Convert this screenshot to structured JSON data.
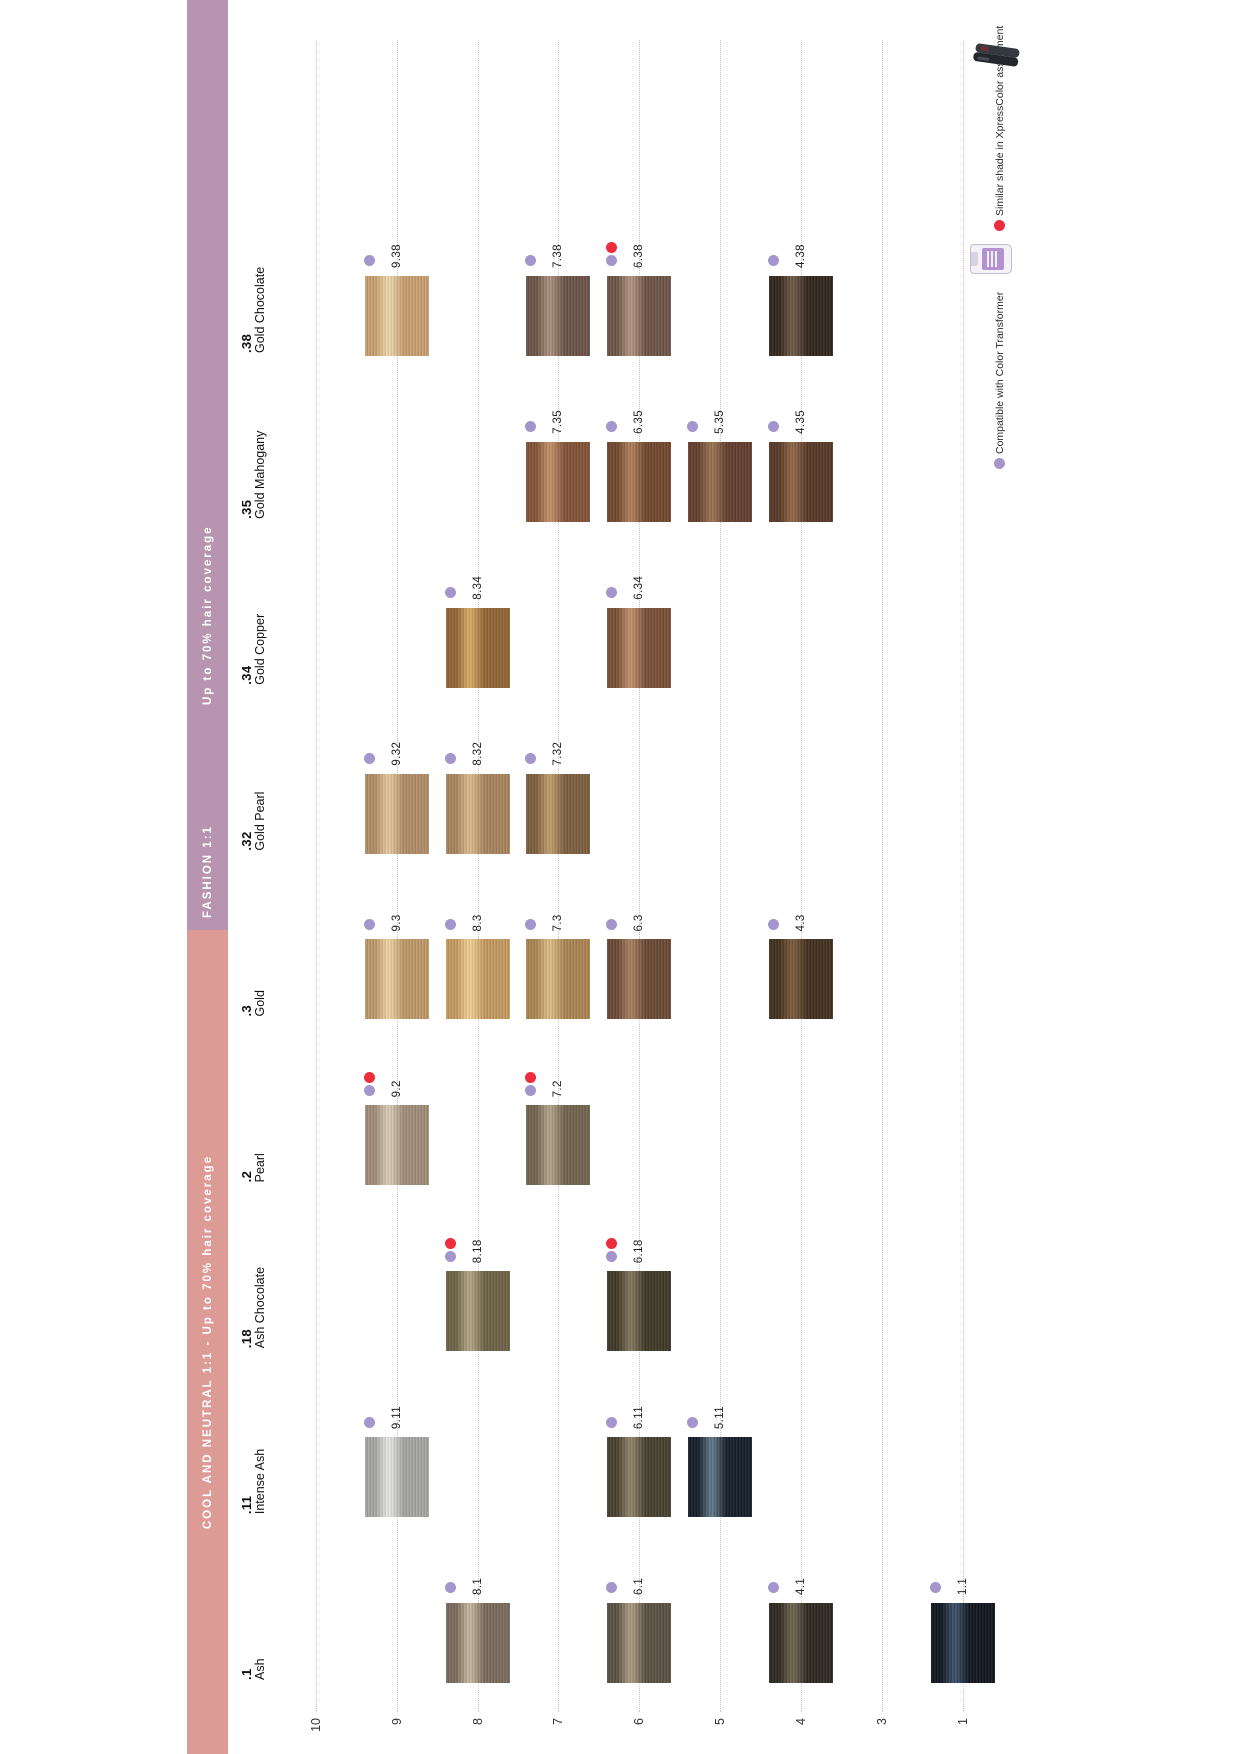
{
  "bands": {
    "cool": {
      "label": "COOL AND NEUTRAL 1:1 - Up to 70% hair coverage",
      "color": "#dd9b95"
    },
    "fashion": {
      "label": "FASHION 1:1",
      "coverage_label": "Up to 70% hair coverage",
      "color": "#b795b0"
    }
  },
  "axis": {
    "levels": [
      "10",
      "9",
      "8",
      "7",
      "6",
      "5",
      "4",
      "3",
      "1"
    ]
  },
  "legend": {
    "purple": {
      "label": "Compatible with Color Transformer",
      "color": "#a495cc"
    },
    "red": {
      "label": "Similar shade in XpressColor assortment",
      "color": "#ed2c3c"
    }
  },
  "icons": {
    "bottle": "color-transformer-bottle",
    "iron": "xpresscolor-flat-iron"
  },
  "families": [
    {
      "code": ".1",
      "name": "Ash",
      "shades": [
        {
          "code": "8.1",
          "level": "8",
          "dots": [
            "purple"
          ],
          "base": "#7b6c5c",
          "streak": "#c6b59d"
        },
        {
          "code": "6.1",
          "level": "6",
          "dots": [
            "purple"
          ],
          "base": "#5a5244",
          "streak": "#a89a7f"
        },
        {
          "code": "4.1",
          "level": "4",
          "dots": [
            "purple"
          ],
          "base": "#2e2921",
          "streak": "#6f6450"
        },
        {
          "code": "1.1",
          "level": "1",
          "dots": [
            "purple"
          ],
          "base": "#10161f",
          "streak": "#3c5068"
        }
      ]
    },
    {
      "code": ".11",
      "name": "Intense Ash",
      "shades": [
        {
          "code": "9.11",
          "level": "9",
          "dots": [
            "purple"
          ],
          "base": "#a7a7a5",
          "streak": "#e6e6e4"
        },
        {
          "code": "6.11",
          "level": "6",
          "dots": [
            "purple"
          ],
          "base": "#474130",
          "streak": "#8e8267"
        },
        {
          "code": "5.11",
          "level": "5",
          "dots": [
            "purple"
          ],
          "base": "#161f2a",
          "streak": "#5f7587"
        }
      ]
    },
    {
      "code": ".18",
      "name": "Ash Chocolate",
      "shades": [
        {
          "code": "8.18",
          "level": "8",
          "dots": [
            "red",
            "purple"
          ],
          "base": "#6f6448",
          "streak": "#b2a481"
        },
        {
          "code": "6.18",
          "level": "6",
          "dots": [
            "red",
            "purple"
          ],
          "base": "#403928",
          "streak": "#80745a"
        }
      ]
    },
    {
      "code": ".2",
      "name": "Pearl",
      "shades": [
        {
          "code": "9.2",
          "level": "9",
          "dots": [
            "red",
            "purple"
          ],
          "base": "#a28f7a",
          "streak": "#d9cbb3"
        },
        {
          "code": "7.2",
          "level": "7",
          "dots": [
            "red",
            "purple"
          ],
          "base": "#73654f",
          "streak": "#b2a288"
        }
      ]
    },
    {
      "code": ".3",
      "name": "Gold",
      "shades": [
        {
          "code": "9.3",
          "level": "9",
          "dots": [
            "purple"
          ],
          "base": "#bf996a",
          "streak": "#eed2a0"
        },
        {
          "code": "8.3",
          "level": "8",
          "dots": [
            "purple"
          ],
          "base": "#c59b62",
          "streak": "#f2cf92"
        },
        {
          "code": "7.3",
          "level": "7",
          "dots": [
            "purple"
          ],
          "base": "#ac8656",
          "streak": "#debc85"
        },
        {
          "code": "6.3",
          "level": "6",
          "dots": [
            "purple"
          ],
          "base": "#6c4a36",
          "streak": "#a87e5e"
        },
        {
          "code": "4.3",
          "level": "4",
          "dots": [
            "purple"
          ],
          "base": "#44301f",
          "streak": "#7a5b3e"
        }
      ]
    },
    {
      "code": ".32",
      "name": "Gold Pearl",
      "shades": [
        {
          "code": "9.32",
          "level": "9",
          "dots": [
            "purple"
          ],
          "base": "#b28e68",
          "streak": "#e5c79b"
        },
        {
          "code": "8.32",
          "level": "8",
          "dots": [
            "purple"
          ],
          "base": "#a9855f",
          "streak": "#dcbb8b"
        },
        {
          "code": "7.32",
          "level": "7",
          "dots": [
            "purple"
          ],
          "base": "#7e6041",
          "streak": "#c29c6c"
        }
      ]
    },
    {
      "code": ".34",
      "name": "Gold Copper",
      "shades": [
        {
          "code": "8.34",
          "level": "8",
          "dots": [
            "purple"
          ],
          "base": "#936637",
          "streak": "#d7a967"
        },
        {
          "code": "6.34",
          "level": "6",
          "dots": [
            "purple"
          ],
          "base": "#7b5138",
          "streak": "#c08f6d"
        }
      ]
    },
    {
      "code": ".35",
      "name": "Gold Mahogany",
      "shades": [
        {
          "code": "7.35",
          "level": "7",
          "dots": [
            "purple"
          ],
          "base": "#84543a",
          "streak": "#c48e67"
        },
        {
          "code": "6.35",
          "level": "6",
          "dots": [
            "purple"
          ],
          "base": "#72482e",
          "streak": "#af7e5a"
        },
        {
          "code": "5.35",
          "level": "5",
          "dots": [
            "purple"
          ],
          "base": "#64402f",
          "streak": "#9b7251"
        },
        {
          "code": "4.35",
          "level": "4",
          "dots": [
            "purple"
          ],
          "base": "#583a27",
          "streak": "#8e6648"
        }
      ]
    },
    {
      "code": ".38",
      "name": "Gold Chocolate",
      "shades": [
        {
          "code": "9.38",
          "level": "9",
          "dots": [
            "purple"
          ],
          "base": "#c9a171",
          "streak": "#efd6aa"
        },
        {
          "code": "7.38",
          "level": "7",
          "dots": [
            "purple"
          ],
          "base": "#6c5549",
          "streak": "#a98e7c"
        },
        {
          "code": "6.38",
          "level": "6",
          "dots": [
            "red",
            "purple"
          ],
          "base": "#6f5648",
          "streak": "#b19381"
        },
        {
          "code": "4.38",
          "level": "4",
          "dots": [
            "purple"
          ],
          "base": "#32271d",
          "streak": "#6d5947"
        }
      ]
    }
  ]
}
